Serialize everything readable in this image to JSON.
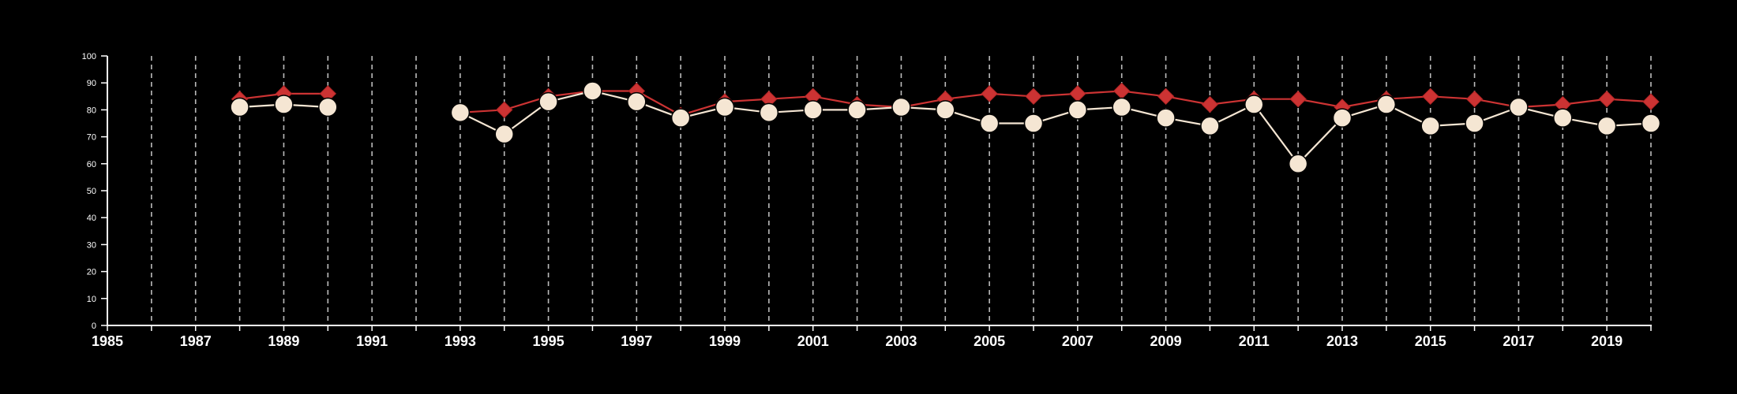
{
  "chart_data": {
    "type": "line",
    "title": "",
    "xlabel": "",
    "ylabel": "",
    "xlim": [
      1985,
      2020
    ],
    "ylim": [
      0,
      100
    ],
    "x_ticks": [
      1985,
      1987,
      1989,
      1991,
      1993,
      1995,
      1997,
      1999,
      2001,
      2003,
      2005,
      2007,
      2009,
      2011,
      2013,
      2015,
      2017,
      2019
    ],
    "x_tick_labels": [
      "1985",
      "1987",
      "1989",
      "1991",
      "1993",
      "1995",
      "1997",
      "1999",
      "2001",
      "2003",
      "2005",
      "2007",
      "2009",
      "2011",
      "2013",
      "2015",
      "2017",
      "2019"
    ],
    "y_ticks": [
      0,
      10,
      20,
      30,
      40,
      50,
      60,
      70,
      80,
      90,
      100
    ],
    "y_tick_labels": [
      "0",
      "10",
      "20",
      "30",
      "40",
      "50",
      "60",
      "70",
      "80",
      "90",
      "100"
    ],
    "vertical_gridlines": "dashed, every year",
    "grid": true,
    "legend": "none",
    "background_color": "#000000",
    "series": [
      {
        "color": "#cc3333",
        "marker": "diamond",
        "points": [
          {
            "x": 1988,
            "y": 84
          },
          {
            "x": 1989,
            "y": 86
          },
          {
            "x": 1990,
            "y": 86
          },
          {
            "x": 1993,
            "y": 79
          },
          {
            "x": 1994,
            "y": 80
          },
          {
            "x": 1995,
            "y": 85
          },
          {
            "x": 1996,
            "y": 87
          },
          {
            "x": 1997,
            "y": 87
          },
          {
            "x": 1998,
            "y": 78
          },
          {
            "x": 1999,
            "y": 83
          },
          {
            "x": 2000,
            "y": 84
          },
          {
            "x": 2001,
            "y": 85
          },
          {
            "x": 2002,
            "y": 82
          },
          {
            "x": 2003,
            "y": 81
          },
          {
            "x": 2004,
            "y": 84
          },
          {
            "x": 2005,
            "y": 86
          },
          {
            "x": 2006,
            "y": 85
          },
          {
            "x": 2007,
            "y": 86
          },
          {
            "x": 2008,
            "y": 87
          },
          {
            "x": 2009,
            "y": 85
          },
          {
            "x": 2010,
            "y": 82
          },
          {
            "x": 2011,
            "y": 84
          },
          {
            "x": 2012,
            "y": 84
          },
          {
            "x": 2013,
            "y": 81
          },
          {
            "x": 2014,
            "y": 84
          },
          {
            "x": 2015,
            "y": 85
          },
          {
            "x": 2016,
            "y": 84
          },
          {
            "x": 2017,
            "y": 81
          },
          {
            "x": 2018,
            "y": 82
          },
          {
            "x": 2019,
            "y": 84
          },
          {
            "x": 2020,
            "y": 83
          }
        ]
      },
      {
        "color": "#f5e6d3",
        "marker": "circle",
        "points": [
          {
            "x": 1988,
            "y": 81
          },
          {
            "x": 1989,
            "y": 82
          },
          {
            "x": 1990,
            "y": 81
          },
          {
            "x": 1993,
            "y": 79
          },
          {
            "x": 1994,
            "y": 71
          },
          {
            "x": 1995,
            "y": 83
          },
          {
            "x": 1996,
            "y": 87
          },
          {
            "x": 1997,
            "y": 83
          },
          {
            "x": 1998,
            "y": 77
          },
          {
            "x": 1999,
            "y": 81
          },
          {
            "x": 2000,
            "y": 79
          },
          {
            "x": 2001,
            "y": 80
          },
          {
            "x": 2002,
            "y": 80
          },
          {
            "x": 2003,
            "y": 81
          },
          {
            "x": 2004,
            "y": 80
          },
          {
            "x": 2005,
            "y": 75
          },
          {
            "x": 2006,
            "y": 75
          },
          {
            "x": 2007,
            "y": 80
          },
          {
            "x": 2008,
            "y": 81
          },
          {
            "x": 2009,
            "y": 77
          },
          {
            "x": 2010,
            "y": 74
          },
          {
            "x": 2011,
            "y": 82
          },
          {
            "x": 2012,
            "y": 60
          },
          {
            "x": 2013,
            "y": 77
          },
          {
            "x": 2014,
            "y": 82
          },
          {
            "x": 2015,
            "y": 74
          },
          {
            "x": 2016,
            "y": 75
          },
          {
            "x": 2017,
            "y": 81
          },
          {
            "x": 2018,
            "y": 77
          },
          {
            "x": 2019,
            "y": 74
          },
          {
            "x": 2020,
            "y": 75
          }
        ]
      }
    ]
  }
}
